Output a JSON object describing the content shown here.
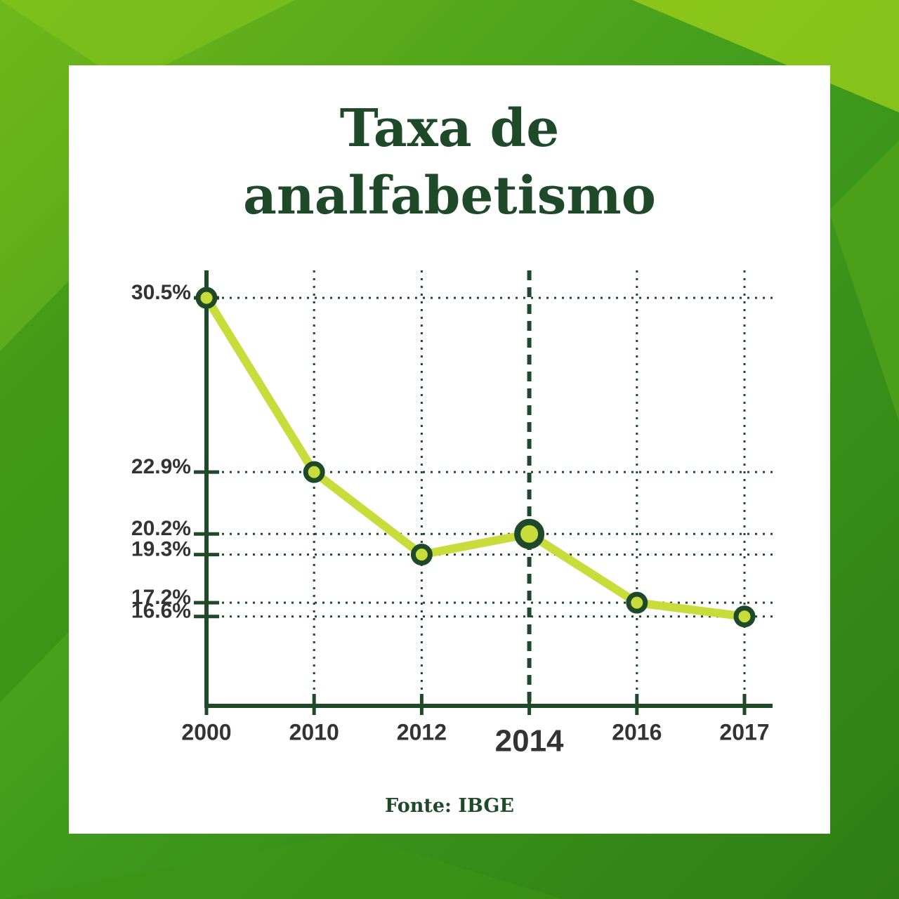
{
  "chart_data": {
    "type": "line",
    "title": "Taxa de analfabetismo",
    "source": "Fonte: IBGE",
    "categories": [
      "2000",
      "2010",
      "2012",
      "2014",
      "2016",
      "2017"
    ],
    "values": [
      30.5,
      22.9,
      19.3,
      20.2,
      17.2,
      16.6
    ],
    "color": "#c8dc3c",
    "marker_edge_color": "#1f4a2a",
    "highlight_index": 3,
    "ylim": [
      12.7,
      31.7
    ],
    "yticks": [
      {
        "value": 16.6,
        "label": "16.6%"
      },
      {
        "value": 17.2,
        "label": "17.2%"
      },
      {
        "value": 19.3,
        "label": "19.3%"
      },
      {
        "value": 20.2,
        "label": "20.2%"
      },
      {
        "value": 22.9,
        "label": "22.9%"
      },
      {
        "value": 30.5,
        "label": "30.5%"
      }
    ],
    "grid": true
  }
}
